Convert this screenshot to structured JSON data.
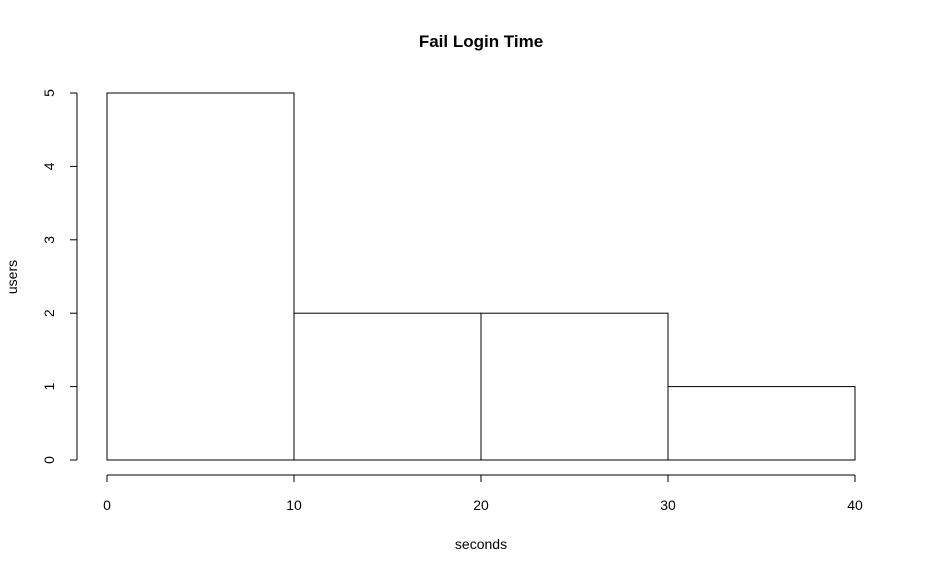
{
  "chart_data": {
    "type": "bar",
    "title": "Fail Login Time",
    "xlabel": "seconds",
    "ylabel": "users",
    "bins": [
      {
        "start": 0,
        "end": 10,
        "count": 5
      },
      {
        "start": 10,
        "end": 20,
        "count": 2
      },
      {
        "start": 20,
        "end": 30,
        "count": 2
      },
      {
        "start": 30,
        "end": 40,
        "count": 1
      }
    ],
    "x_ticks": [
      "0",
      "10",
      "20",
      "30",
      "40"
    ],
    "y_ticks": [
      "0",
      "1",
      "2",
      "3",
      "4",
      "5"
    ],
    "xlim": [
      0,
      40
    ],
    "ylim": [
      0,
      5
    ],
    "grid": false,
    "bar_fill": "#ffffff",
    "bar_stroke": "#000000"
  }
}
